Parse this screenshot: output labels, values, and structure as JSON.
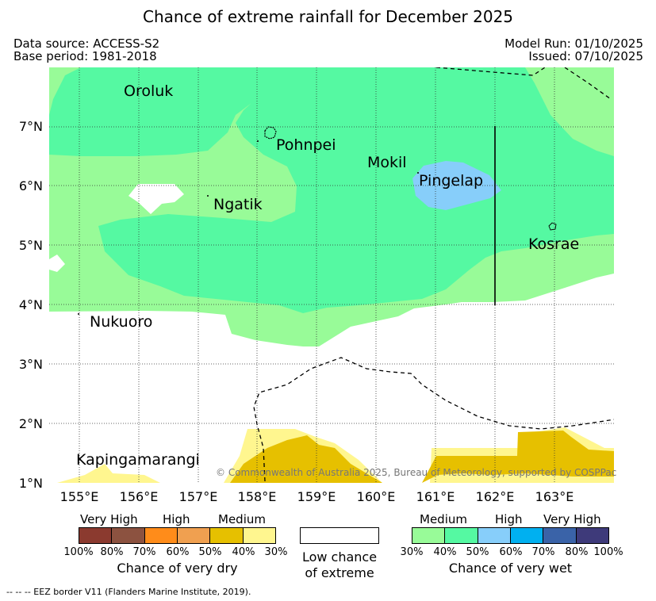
{
  "title": "Chance of extreme rainfall for December 2025",
  "data_source": "Data source: ACCESS-S2",
  "base_period": "Base period: 1981-2018",
  "model_run": "Model Run: 01/10/2025",
  "issued": "Issued: 07/10/2025",
  "latitude_labels": [
    "7°N",
    "6°N",
    "5°N",
    "4°N",
    "3°N",
    "2°N",
    "1°N"
  ],
  "longitude_labels": [
    "155°E",
    "156°E",
    "157°E",
    "158°E",
    "159°E",
    "160°E",
    "161°E",
    "162°E",
    "163°E"
  ],
  "places": {
    "oroluk": "Oroluk",
    "pohnpei": "Pohnpei",
    "mokil": "Mokil",
    "pingelap": "Pingelap",
    "ngatik": "Ngatik",
    "kosrae": "Kosrae",
    "nukuoro": "Nukuoro",
    "kapingamarangi": "Kapingamarangi"
  },
  "copyright": "© Commonwealth of Australia 2025, Bureau of Meteorology, supported by COSPPac",
  "legend_dry": {
    "headers": [
      "Very High",
      "High",
      "Medium"
    ],
    "ticks": [
      "100%",
      "80%",
      "70%",
      "60%",
      "50%",
      "40%",
      "30%"
    ],
    "title": "Chance of very dry",
    "colors": [
      "#8b3a2f",
      "#8c5240",
      "#ff8c1a",
      "#f0a050",
      "#e6c000",
      "#fff68f"
    ]
  },
  "legend_low": {
    "line1": "Low chance",
    "line2": "of extreme"
  },
  "legend_wet": {
    "headers": [
      "Medium",
      "High",
      "Very High"
    ],
    "ticks": [
      "30%",
      "40%",
      "50%",
      "60%",
      "70%",
      "80%",
      "100%"
    ],
    "title": "Chance of very wet",
    "colors": [
      "#98fb98",
      "#55f9a2",
      "#87cefa",
      "#00b0f0",
      "#3a63a8",
      "#3e3a7a"
    ]
  },
  "eez_note": "-- -- -- EEZ border V11 (Flanders Marine Institute, 2019).",
  "colors": {
    "wet_30": "#98fb98",
    "wet_40": "#55f9a2",
    "wet_50": "#87cefa",
    "dry_30": "#fff68f",
    "dry_40": "#e6c000"
  }
}
